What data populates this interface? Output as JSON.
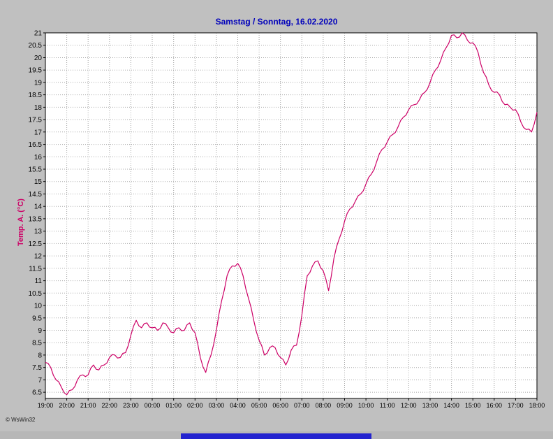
{
  "window": {
    "copyright": "© WsWin32"
  },
  "chart": {
    "title": "Samstag / Sonntag, 16.02.2020",
    "y_axis_label": "Temp. A. (°C)"
  },
  "colors": {
    "background": "#c0c0c0",
    "plot_bg": "#ffffff",
    "grid": "#a8a8a8",
    "axis": "#000000",
    "line": "#cc0066",
    "title": "#0000bb",
    "y_axis_label": "#cc0066",
    "footer_bar": "#2323cf"
  },
  "chart_data": {
    "type": "line",
    "title": "Samstag / Sonntag, 16.02.2020",
    "xlabel": "",
    "ylabel": "Temp. A. (°C)",
    "series_name": "Temp. A.",
    "grid": "dotted",
    "legend": "none",
    "ylim": [
      6.25,
      21
    ],
    "y_tick_step": 0.5,
    "y_tick_labels": [
      "21",
      "20.5",
      "20",
      "19.5",
      "19",
      "18.5",
      "18",
      "17.5",
      "17",
      "16.5",
      "16",
      "15.5",
      "15",
      "14.5",
      "14",
      "13.5",
      "13",
      "12.5",
      "12",
      "11.5",
      "11",
      "10.5",
      "10",
      "9.5",
      "9",
      "8.5",
      "8",
      "7.5",
      "7",
      "6.5"
    ],
    "x_tick_labels": [
      "19:00",
      "20:00",
      "21:00",
      "22:00",
      "23:00",
      "00:00",
      "01:00",
      "02:00",
      "03:00",
      "04:00",
      "05:00",
      "06:00",
      "07:00",
      "08:00",
      "09:00",
      "10:00",
      "11:00",
      "12:00",
      "13:00",
      "14:00",
      "15:00",
      "16:00",
      "17:00",
      "18:00"
    ],
    "x": [
      "19:00",
      "19:15",
      "19:30",
      "19:45",
      "20:00",
      "20:15",
      "20:30",
      "20:45",
      "21:00",
      "21:15",
      "21:30",
      "21:45",
      "22:00",
      "22:15",
      "22:30",
      "22:45",
      "23:00",
      "23:15",
      "23:30",
      "23:45",
      "00:00",
      "00:15",
      "00:30",
      "00:45",
      "01:00",
      "01:15",
      "01:30",
      "01:45",
      "02:00",
      "02:15",
      "02:30",
      "02:45",
      "03:00",
      "03:15",
      "03:30",
      "03:45",
      "04:00",
      "04:15",
      "04:30",
      "04:45",
      "05:00",
      "05:15",
      "05:30",
      "05:45",
      "06:00",
      "06:15",
      "06:30",
      "06:45",
      "07:00",
      "07:15",
      "07:30",
      "07:45",
      "08:00",
      "08:15",
      "08:30",
      "08:45",
      "09:00",
      "09:15",
      "09:30",
      "09:45",
      "10:00",
      "10:15",
      "10:30",
      "10:45",
      "11:00",
      "11:15",
      "11:30",
      "11:45",
      "12:00",
      "12:15",
      "12:30",
      "12:45",
      "13:00",
      "13:15",
      "13:30",
      "13:45",
      "14:00",
      "14:15",
      "14:30",
      "14:45",
      "15:00",
      "15:15",
      "15:30",
      "15:45",
      "16:00",
      "16:15",
      "16:30",
      "16:45",
      "17:00",
      "17:15",
      "17:30",
      "17:45",
      "18:00"
    ],
    "values": [
      7.7,
      7.5,
      7.0,
      6.7,
      6.4,
      6.6,
      7.0,
      7.2,
      7.2,
      7.6,
      7.4,
      7.6,
      7.9,
      8.0,
      7.9,
      8.1,
      8.8,
      9.4,
      9.1,
      9.3,
      9.1,
      9.0,
      9.3,
      9.1,
      8.9,
      9.1,
      9.0,
      9.3,
      8.9,
      7.9,
      7.3,
      8.0,
      9.0,
      10.2,
      11.2,
      11.6,
      11.7,
      11.2,
      10.3,
      9.4,
      8.6,
      8.0,
      8.3,
      8.3,
      7.9,
      7.6,
      8.2,
      8.4,
      9.6,
      11.2,
      11.6,
      11.8,
      11.4,
      10.6,
      11.9,
      12.7,
      13.4,
      13.9,
      14.2,
      14.5,
      14.9,
      15.3,
      15.8,
      16.3,
      16.6,
      16.9,
      17.2,
      17.6,
      17.9,
      18.1,
      18.3,
      18.6,
      19.0,
      19.5,
      19.9,
      20.4,
      20.9,
      20.8,
      21.0,
      20.7,
      20.6,
      20.2,
      19.4,
      18.9,
      18.6,
      18.5,
      18.1,
      18.0,
      17.9,
      17.4,
      17.1,
      17.0,
      17.8
    ]
  }
}
